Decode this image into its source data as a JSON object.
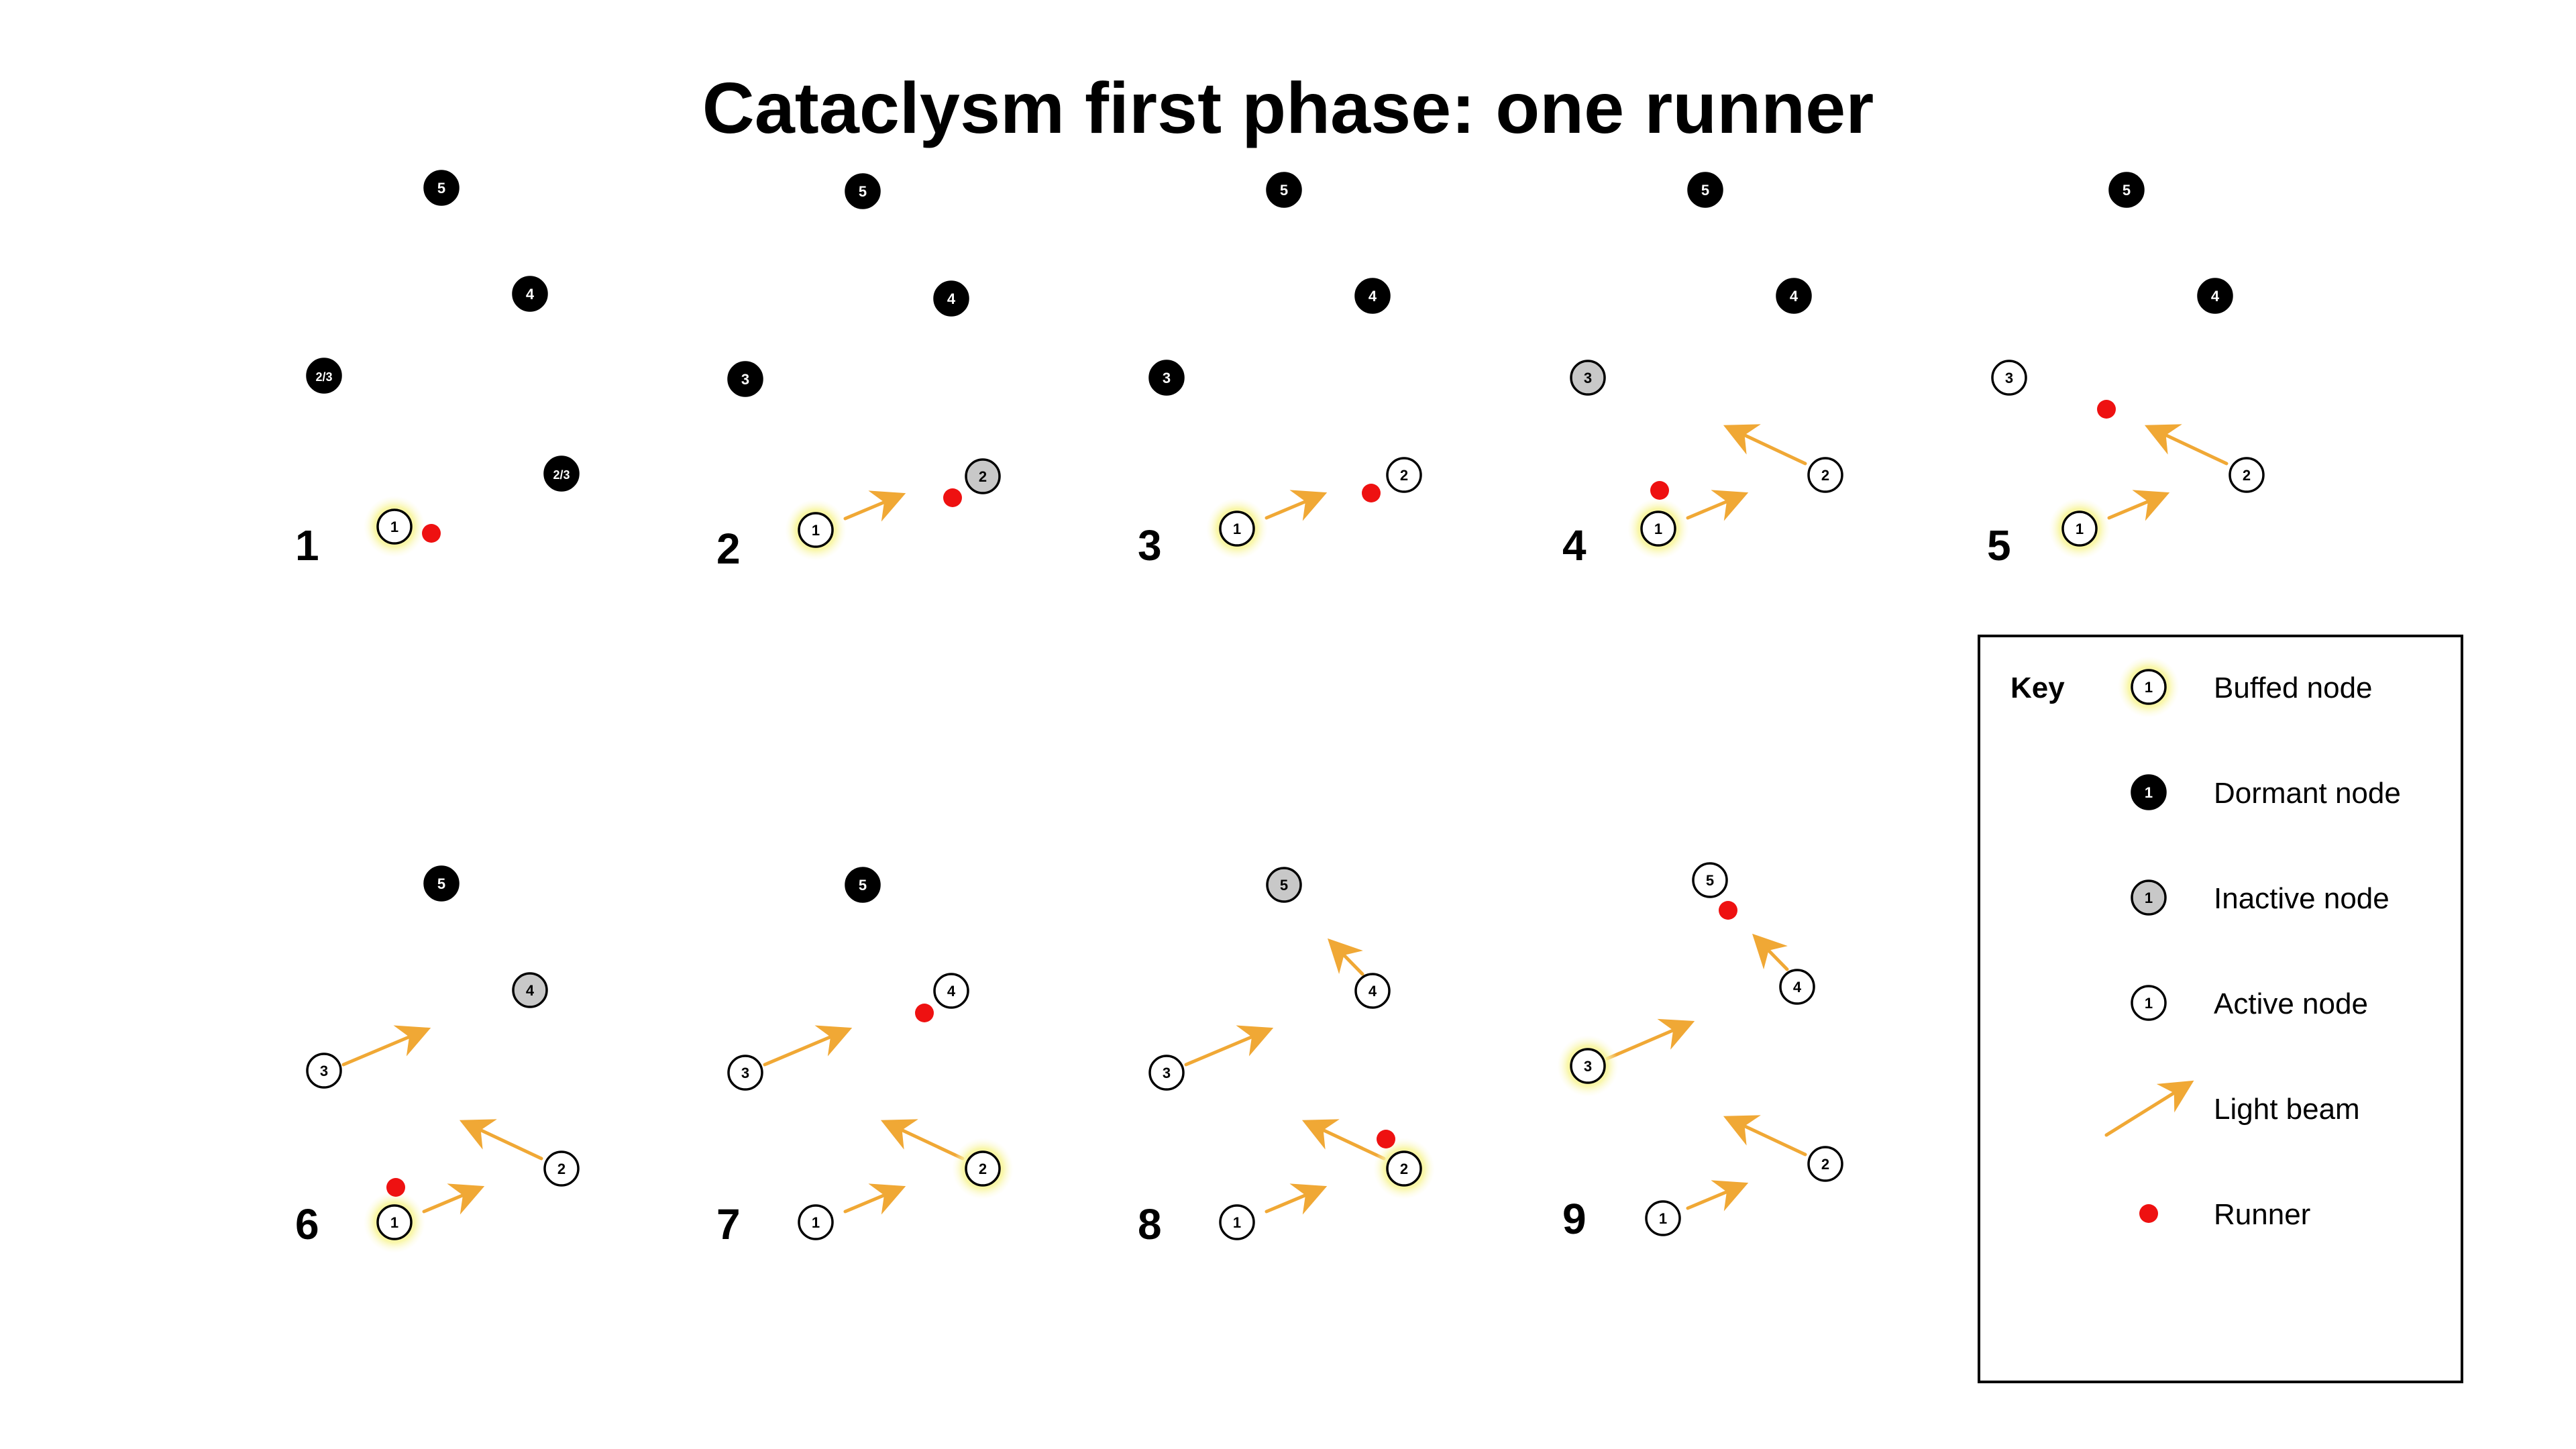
{
  "title": "Cataclysm first phase: one runner",
  "colors": {
    "dormant": "#000000",
    "inactive": "#c8c8c8",
    "active": "#ffffff",
    "glow": "#f6f27a",
    "beam": "#f0a835",
    "runner": "#ee1111"
  },
  "panels": [
    {
      "label": "1",
      "nodes": [
        {
          "text": "5",
          "state": "dormant"
        },
        {
          "text": "4",
          "state": "dormant"
        },
        {
          "text": "2/3",
          "state": "dormant"
        },
        {
          "text": "2/3",
          "state": "dormant"
        },
        {
          "text": "1",
          "state": "buffed"
        }
      ],
      "beams": 0,
      "runners": 1
    },
    {
      "label": "2",
      "nodes": [
        {
          "text": "5",
          "state": "dormant"
        },
        {
          "text": "4",
          "state": "dormant"
        },
        {
          "text": "3",
          "state": "dormant"
        },
        {
          "text": "2",
          "state": "inactive"
        },
        {
          "text": "1",
          "state": "buffed"
        }
      ],
      "beams": 1,
      "runners": 1
    },
    {
      "label": "3",
      "nodes": [
        {
          "text": "5",
          "state": "dormant"
        },
        {
          "text": "4",
          "state": "dormant"
        },
        {
          "text": "3",
          "state": "dormant"
        },
        {
          "text": "2",
          "state": "active"
        },
        {
          "text": "1",
          "state": "buffed"
        }
      ],
      "beams": 1,
      "runners": 1
    },
    {
      "label": "4",
      "nodes": [
        {
          "text": "5",
          "state": "dormant"
        },
        {
          "text": "4",
          "state": "dormant"
        },
        {
          "text": "3",
          "state": "inactive"
        },
        {
          "text": "2",
          "state": "active"
        },
        {
          "text": "1",
          "state": "buffed"
        }
      ],
      "beams": 2,
      "runners": 1
    },
    {
      "label": "5",
      "nodes": [
        {
          "text": "5",
          "state": "dormant"
        },
        {
          "text": "4",
          "state": "dormant"
        },
        {
          "text": "3",
          "state": "active"
        },
        {
          "text": "2",
          "state": "active"
        },
        {
          "text": "1",
          "state": "buffed"
        }
      ],
      "beams": 2,
      "runners": 1
    },
    {
      "label": "6",
      "nodes": [
        {
          "text": "5",
          "state": "dormant"
        },
        {
          "text": "4",
          "state": "inactive"
        },
        {
          "text": "3",
          "state": "active"
        },
        {
          "text": "2",
          "state": "active"
        },
        {
          "text": "1",
          "state": "buffed"
        }
      ],
      "beams": 3,
      "runners": 1
    },
    {
      "label": "7",
      "nodes": [
        {
          "text": "5",
          "state": "dormant"
        },
        {
          "text": "4",
          "state": "active"
        },
        {
          "text": "3",
          "state": "active"
        },
        {
          "text": "2",
          "state": "buffed"
        },
        {
          "text": "1",
          "state": "active"
        }
      ],
      "beams": 3,
      "runners": 1
    },
    {
      "label": "8",
      "nodes": [
        {
          "text": "5",
          "state": "inactive"
        },
        {
          "text": "4",
          "state": "active"
        },
        {
          "text": "3",
          "state": "active"
        },
        {
          "text": "2",
          "state": "buffed"
        },
        {
          "text": "1",
          "state": "active"
        }
      ],
      "beams": 4,
      "runners": 1
    },
    {
      "label": "9",
      "nodes": [
        {
          "text": "5",
          "state": "active"
        },
        {
          "text": "4",
          "state": "active"
        },
        {
          "text": "3",
          "state": "buffed"
        },
        {
          "text": "2",
          "state": "active"
        },
        {
          "text": "1",
          "state": "active"
        }
      ],
      "beams": 4,
      "runners": 1
    }
  ],
  "key": {
    "heading": "Key",
    "items": [
      {
        "label": "Buffed node",
        "symbol": "buffed",
        "text": "1"
      },
      {
        "label": "Dormant node",
        "symbol": "dormant",
        "text": "1"
      },
      {
        "label": "Inactive node",
        "symbol": "inactive",
        "text": "1"
      },
      {
        "label": "Active node",
        "symbol": "active",
        "text": "1"
      },
      {
        "label": "Light beam",
        "symbol": "beam",
        "text": ""
      },
      {
        "label": "Runner",
        "symbol": "runner",
        "text": ""
      }
    ]
  }
}
